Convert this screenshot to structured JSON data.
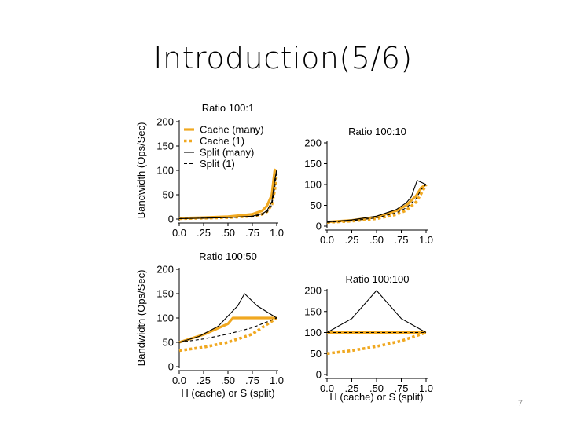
{
  "slide": {
    "title": "Introduction(5/6)",
    "page_number": "7"
  },
  "colors": {
    "cache": "#f0a820",
    "split": "#000000"
  },
  "legend": {
    "entries": [
      "Cache (many)",
      "Cache (1)",
      "Split (many)",
      "Split (1)"
    ]
  },
  "chart_data": [
    {
      "type": "line",
      "title": "Ratio 100:1",
      "xlabel": "",
      "ylabel": "Bandwidth (Ops/Sec)",
      "xlim": [
        0,
        1
      ],
      "ylim": [
        0,
        200
      ],
      "yticks": [
        "0",
        "50",
        "100",
        "150",
        "200"
      ],
      "xticks": [
        "0.0",
        ".25",
        ".50",
        ".75",
        "1.0"
      ],
      "legend": "top-left",
      "series": [
        {
          "name": "Cache (many)",
          "x": [
            0,
            0.25,
            0.5,
            0.75,
            0.85,
            0.9,
            0.95,
            0.98,
            1.0
          ],
          "y": [
            2,
            3,
            5,
            10,
            17,
            27,
            50,
            101,
            98
          ]
        },
        {
          "name": "Cache (1)",
          "x": [
            0,
            0.25,
            0.5,
            0.75,
            0.85,
            0.9,
            0.95,
            0.98,
            1.0
          ],
          "y": [
            1,
            2,
            3,
            6,
            10,
            15,
            30,
            60,
            92
          ]
        },
        {
          "name": "Split (many)",
          "x": [
            0,
            0.25,
            0.5,
            0.75,
            0.85,
            0.9,
            0.95,
            0.98,
            1.0
          ],
          "y": [
            1,
            2,
            3,
            6,
            11,
            17,
            36,
            80,
            101
          ]
        },
        {
          "name": "Split (1)",
          "x": [
            0,
            0.25,
            0.5,
            0.75,
            0.85,
            0.9,
            0.95,
            0.98,
            1.0
          ],
          "y": [
            1,
            2,
            3,
            5,
            9,
            14,
            29,
            65,
            99
          ]
        }
      ]
    },
    {
      "type": "line",
      "title": "Ratio 100:10",
      "xlabel": "",
      "ylabel": "",
      "xlim": [
        0,
        1
      ],
      "ylim": [
        0,
        200
      ],
      "yticks": [
        "0",
        "50",
        "100",
        "150",
        "200"
      ],
      "xticks": [
        "0.0",
        ".25",
        ".50",
        ".75",
        "1.0"
      ],
      "series": [
        {
          "name": "Cache (many)",
          "x": [
            0,
            0.25,
            0.5,
            0.7,
            0.8,
            0.9,
            0.95,
            1.0
          ],
          "y": [
            10,
            14,
            22,
            37,
            50,
            73,
            92,
            100
          ]
        },
        {
          "name": "Cache (1)",
          "x": [
            0,
            0.25,
            0.5,
            0.7,
            0.8,
            0.9,
            0.95,
            1.0
          ],
          "y": [
            9,
            12,
            18,
            28,
            38,
            58,
            78,
            99
          ]
        },
        {
          "name": "Split (many)",
          "x": [
            0,
            0.25,
            0.5,
            0.7,
            0.8,
            0.85,
            0.91,
            1.0
          ],
          "y": [
            10,
            15,
            24,
            40,
            56,
            70,
            110,
            100
          ]
        },
        {
          "name": "Split (1)",
          "x": [
            0,
            0.25,
            0.5,
            0.7,
            0.8,
            0.9,
            0.95,
            1.0
          ],
          "y": [
            9,
            13,
            20,
            32,
            44,
            66,
            88,
            100
          ]
        }
      ]
    },
    {
      "type": "line",
      "title": "Ratio 100:50",
      "xlabel": "H (cache) or S (split)",
      "ylabel": "Bandwidth (Ops/Sec)",
      "xlim": [
        0,
        1
      ],
      "ylim": [
        0,
        200
      ],
      "yticks": [
        "0",
        "50",
        "100",
        "150",
        "200"
      ],
      "xticks": [
        "0.0",
        ".25",
        ".50",
        ".75",
        "1.0"
      ],
      "series": [
        {
          "name": "Cache (many)",
          "x": [
            0,
            0.25,
            0.5,
            0.55,
            1.0
          ],
          "y": [
            50,
            66,
            88,
            100,
            100
          ]
        },
        {
          "name": "Cache (1)",
          "x": [
            0,
            0.25,
            0.5,
            0.75,
            1.0
          ],
          "y": [
            33,
            40,
            50,
            67,
            100
          ]
        },
        {
          "name": "Split (many)",
          "x": [
            0,
            0.2,
            0.4,
            0.6,
            0.67,
            0.8,
            1.0
          ],
          "y": [
            50,
            62,
            83,
            125,
            150,
            125,
            100
          ]
        },
        {
          "name": "Split (1)",
          "x": [
            0,
            0.25,
            0.5,
            0.75,
            1.0
          ],
          "y": [
            50,
            57,
            67,
            80,
            100
          ]
        }
      ]
    },
    {
      "type": "line",
      "title": "Ratio 100:100",
      "xlabel": "H (cache) or S (split)",
      "ylabel": "",
      "xlim": [
        0,
        1
      ],
      "ylim": [
        0,
        200
      ],
      "yticks": [
        "0",
        "50",
        "100",
        "150",
        "200"
      ],
      "xticks": [
        "0.0",
        ".25",
        ".50",
        ".75",
        "1.0"
      ],
      "series": [
        {
          "name": "Cache (many)",
          "x": [
            0,
            1.0
          ],
          "y": [
            100,
            100
          ]
        },
        {
          "name": "Cache (1)",
          "x": [
            0,
            0.25,
            0.5,
            0.75,
            1.0
          ],
          "y": [
            50,
            57,
            67,
            80,
            100
          ]
        },
        {
          "name": "Split (many)",
          "x": [
            0,
            0.25,
            0.5,
            0.75,
            1.0
          ],
          "y": [
            100,
            133,
            200,
            133,
            100
          ]
        },
        {
          "name": "Split (1)",
          "x": [
            0,
            1.0
          ],
          "y": [
            100,
            100
          ]
        }
      ]
    }
  ]
}
